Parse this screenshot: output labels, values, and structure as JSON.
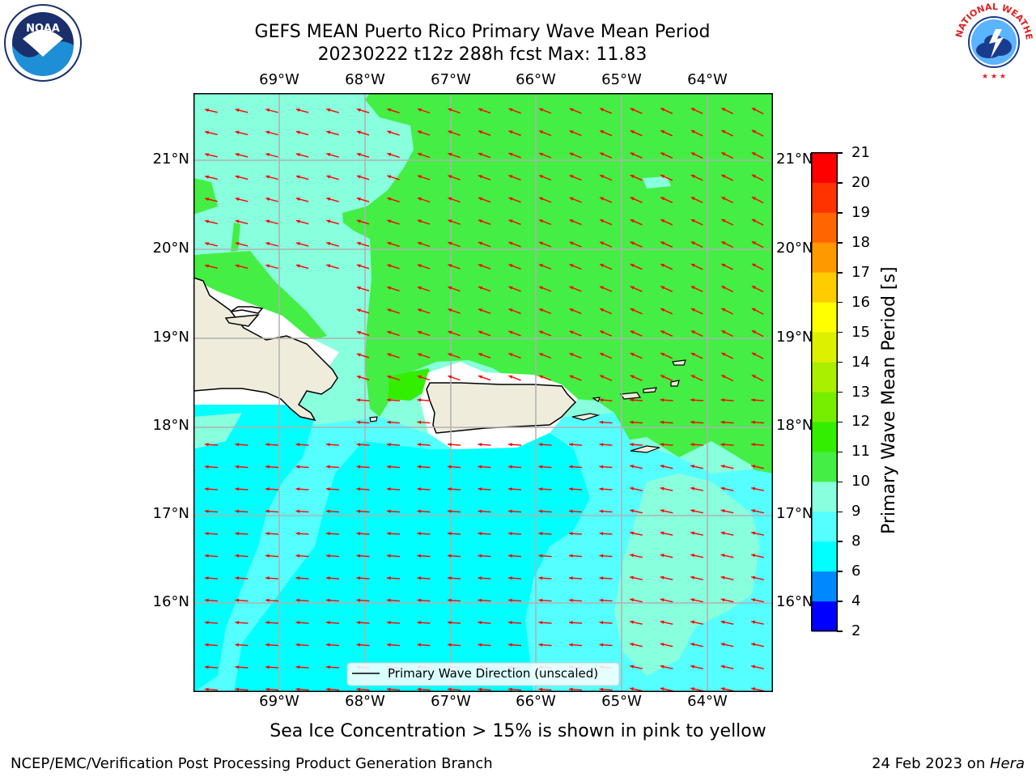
{
  "header": {
    "title_line1": "GEFS MEAN Puerto Rico Primary Wave Mean Period",
    "title_line2": "20230222 t12z 288h fcst   Max: 11.83"
  },
  "logos": {
    "noara_text": "NOAA",
    "nws_text": "NATIONAL WEATHER SERVICE"
  },
  "map": {
    "lon_labels_top": [
      "69°W",
      "68°W",
      "67°W",
      "66°W",
      "65°W",
      "64°W"
    ],
    "lon_labels_bottom": [
      "69°W",
      "68°W",
      "67°W",
      "66°W",
      "65°W",
      "64°W"
    ],
    "lat_labels_left": [
      "21°N",
      "20°N",
      "19°N",
      "18°N",
      "17°N",
      "16°N"
    ],
    "lat_labels_right": [
      "21°N",
      "20°N",
      "19°N",
      "18°N",
      "17°N",
      "16°N"
    ],
    "legend_label": "Primary Wave Direction (unscaled)",
    "arrow_color": "#ff0000",
    "land_color": "#efecdc"
  },
  "colorbar": {
    "label": "Primary Wave Mean Period [s]",
    "ticks": [
      "21",
      "20",
      "19",
      "18",
      "17",
      "16",
      "15",
      "14",
      "13",
      "12",
      "11",
      "10",
      "9",
      "8",
      "6",
      "4",
      "2"
    ],
    "colors": [
      "#ff0000",
      "#ff3300",
      "#ff6600",
      "#ff9900",
      "#ffcc00",
      "#ffff00",
      "#ddf000",
      "#aaee00",
      "#77ee00",
      "#33ee00",
      "#44ee44",
      "#88ffdd",
      "#55ffff",
      "#00ffff",
      "#0088ff",
      "#0000ff"
    ]
  },
  "bottom_note": "Sea Ice Concentration > 15% is shown in pink to yellow",
  "footer": {
    "left": "NCEP/EMC/Verification Post Processing Product Generation Branch",
    "right_prefix": "24 Feb 2023 on ",
    "right_host": "Hera"
  }
}
